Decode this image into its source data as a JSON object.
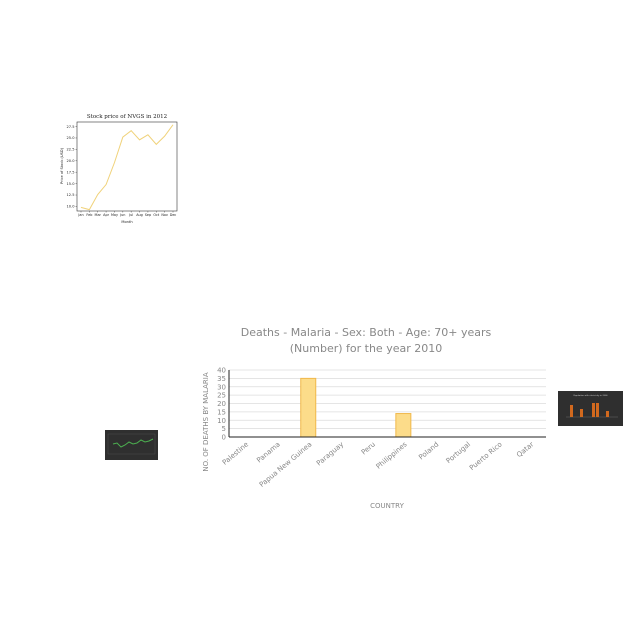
{
  "chart_data": [
    {
      "type": "line",
      "title": "Stock price of NVGS in 2012",
      "xlabel": "Month",
      "ylabel": "Price of Stock (USD)",
      "categories": [
        "Jan",
        "Feb",
        "Mar",
        "Apr",
        "May",
        "Jun",
        "Jul",
        "Aug",
        "Sep",
        "Oct",
        "Nov",
        "Dec"
      ],
      "series": [
        {
          "values": [
            9.8,
            9.3,
            12.6,
            14.8,
            19.6,
            25.2,
            26.6,
            24.6,
            25.7,
            23.6,
            25.4,
            27.9
          ]
        }
      ],
      "yticks": [
        "10.0",
        "12.5",
        "15.0",
        "17.5",
        "20.0",
        "22.5",
        "25.0",
        "27.5"
      ],
      "ylim": [
        9,
        28.5
      ],
      "colors": {
        "line": "#f0d27a"
      }
    },
    {
      "type": "bar",
      "title_line1": "Deaths - Malaria - Sex: Both - Age: 70+ years",
      "title_line2": "(Number)  for the year 2010",
      "xlabel": "COUNTRY",
      "ylabel": "NO. OF DEATHS BY MALARIA",
      "categories": [
        "Palestine",
        "Panama",
        "Papua New Guinea",
        "Paraguay",
        "Peru",
        "Philippines",
        "Poland",
        "Portugal",
        "Puerto Rico",
        "Qatar"
      ],
      "values": [
        0,
        0,
        35,
        0,
        0,
        14,
        0,
        0,
        0,
        0
      ],
      "yticks": [
        "0",
        "5",
        "10",
        "15",
        "20",
        "25",
        "30",
        "35",
        "40"
      ],
      "ylim": [
        0,
        40
      ],
      "colors": {
        "bar_fill": "#fcdc8a",
        "bar_stroke": "#f0b84a",
        "grid": "#dcdcdc",
        "text": "#888888"
      }
    }
  ],
  "thumbnails": [
    {
      "kind": "line",
      "colors": {
        "bg": "#2f2f2f",
        "line": "#4caf50"
      }
    },
    {
      "kind": "bar",
      "title": "Population with electricity in 2006",
      "colors": {
        "bg": "#2f2f2f",
        "bar": "#d2691e"
      }
    }
  ]
}
